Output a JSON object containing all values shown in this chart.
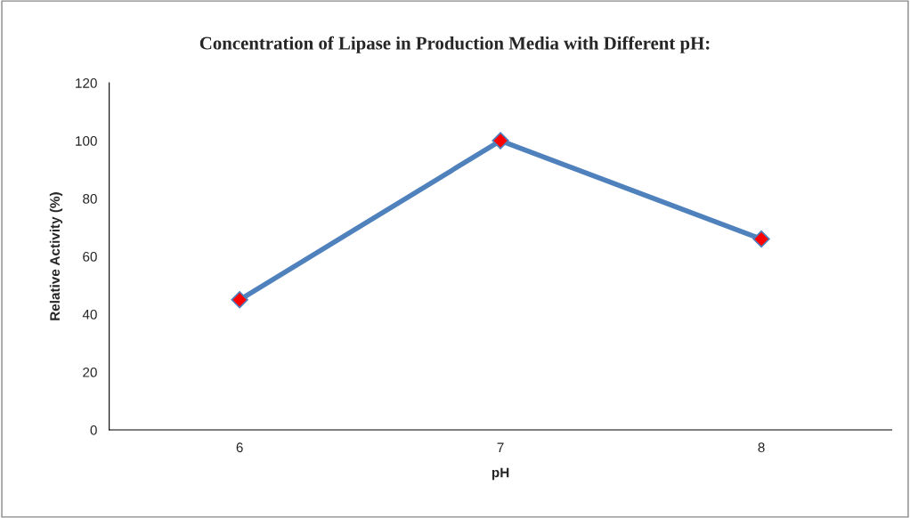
{
  "chart_data": {
    "type": "line",
    "title": "Concentration of Lipase in Production Media with Different pH:",
    "xlabel": "pH",
    "ylabel": "Relative Activity (%)",
    "categories": [
      "6",
      "7",
      "8"
    ],
    "series": [
      {
        "color": "#4f81bd",
        "values": [
          45,
          100,
          66
        ]
      }
    ],
    "ylim": [
      0,
      120
    ],
    "yticks": [
      0,
      20,
      40,
      60,
      80,
      100,
      120
    ],
    "marker": "diamond"
  }
}
